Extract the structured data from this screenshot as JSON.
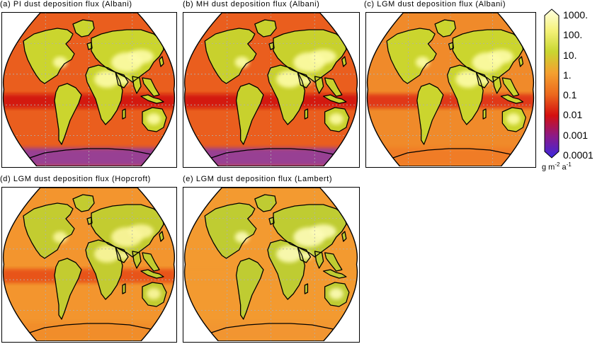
{
  "panels": [
    {
      "id": "a",
      "title": "(a) PI dust deposition flux (Albani)",
      "fields": {
        "bg": "#ea5e1e",
        "land": "#cbd52e",
        "desert": "#fdfca8",
        "polar": "#8a3aa8",
        "tropicBand": "#cf1010"
      }
    },
    {
      "id": "b",
      "title": "(b) MH dust deposition flux (Albani)",
      "fields": {
        "bg": "#ea5e1e",
        "land": "#c8d12d",
        "desert": "#fdfca8",
        "polar": "#8a3aa8",
        "tropicBand": "#cf1010"
      }
    },
    {
      "id": "c",
      "title": "(c) LGM dust deposition flux (Albani)",
      "fields": {
        "bg": "#f08a2a",
        "land": "#cbd52e",
        "desert": "#fdfca8",
        "polar": "#f07a28",
        "tropicBand": "#dd2a14"
      }
    },
    {
      "id": "d",
      "title": "(d) LGM dust deposition flux (Hopcroft)",
      "fields": {
        "bg": "#f3952e",
        "land": "#c3cc30",
        "desert": "#fbf7a0",
        "polar": "#f08c2c",
        "tropicBand": "#e54a18"
      }
    },
    {
      "id": "e",
      "title": "(e) LGM dust deposition flux (Lambert)",
      "fields": {
        "bg": "#f39a30",
        "land": "#bfcc32",
        "desert": "#fdfcb8",
        "polar": "#f19530",
        "tropicBand": "#f39a30"
      }
    }
  ],
  "colorbar": {
    "labels": [
      "1000.",
      "100.",
      "10.",
      "1.",
      "0.1",
      "0.01",
      "0.001",
      "0.0001"
    ],
    "colors": [
      "#ffffe0",
      "#f5f27a",
      "#c9d630",
      "#f4a030",
      "#ec6a1e",
      "#d41010",
      "#8a1a8a",
      "#3a28e0"
    ],
    "units_base": "g m",
    "units_exp1": "-2",
    "units_mid": " a",
    "units_exp2": "-1"
  }
}
